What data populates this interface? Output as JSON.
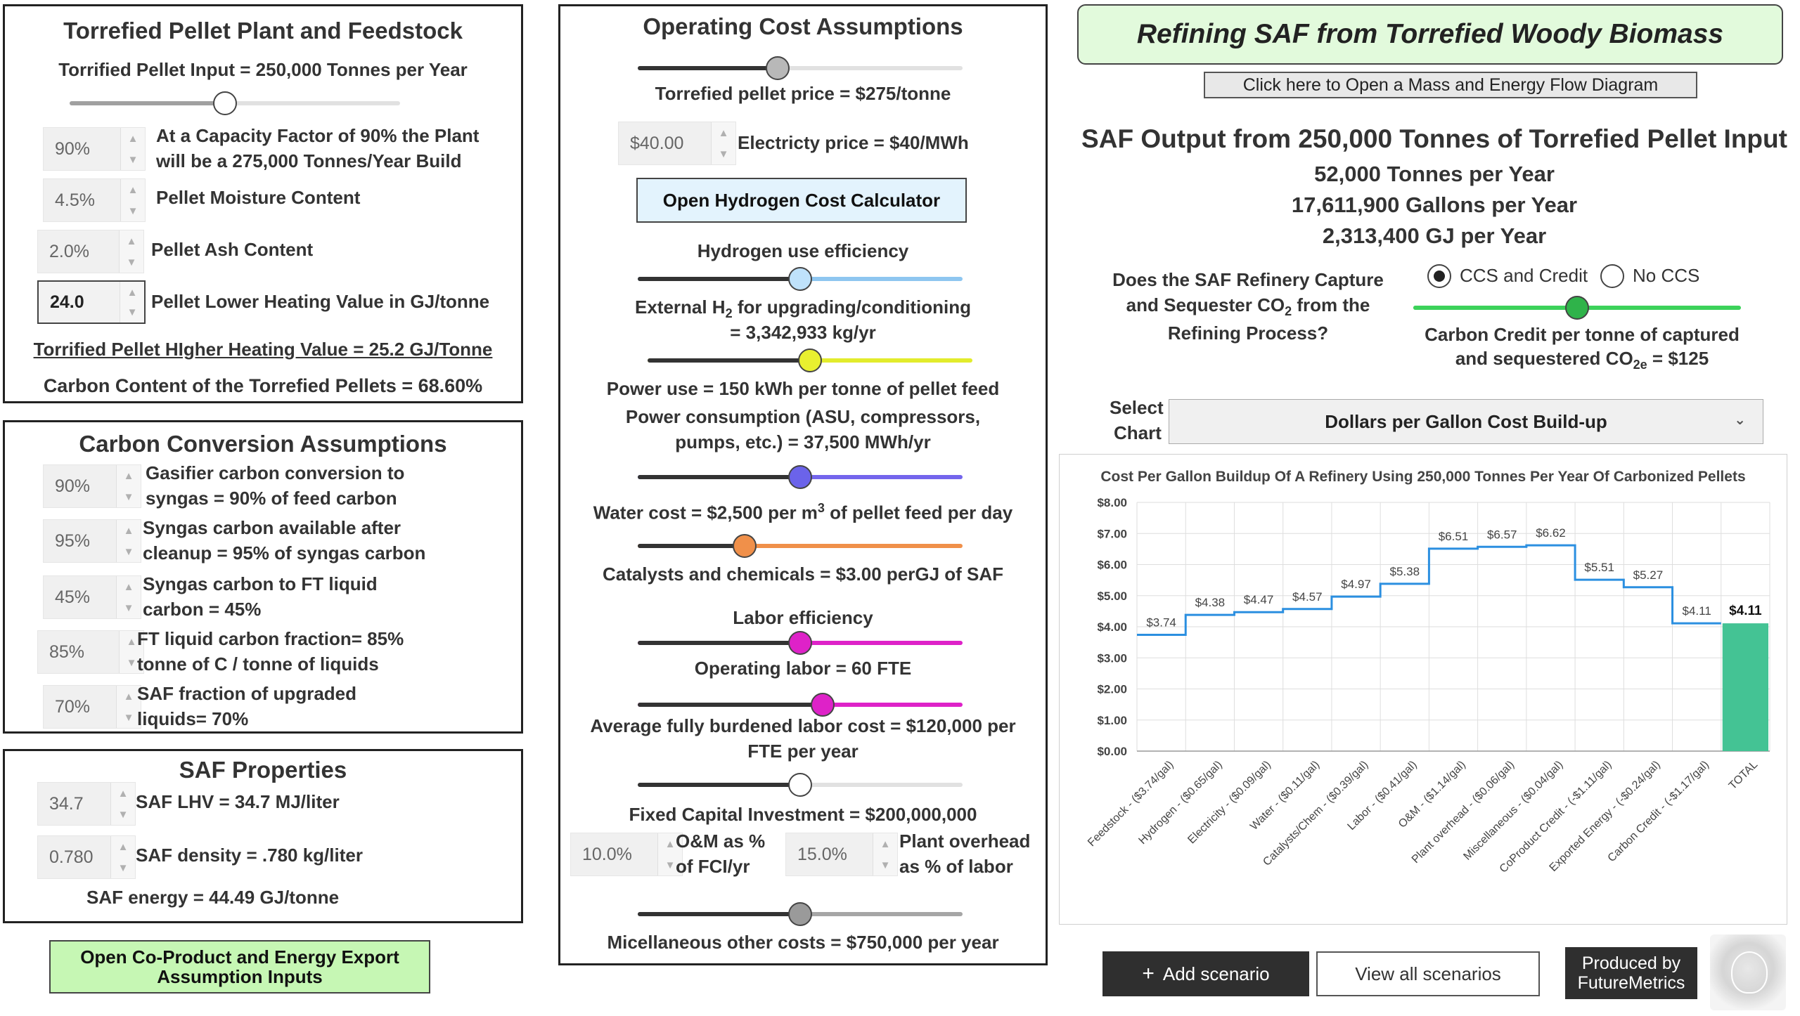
{
  "feedstock": {
    "title": "Torrefied Pellet Plant and Feedstock",
    "input_label": "Torrified Pellet Input = 250,000 Tonnes per Year",
    "input_slider_fraction": 0.47,
    "capacity_value": "90%",
    "capacity_text": "At a Capacity Factor of 90% the Plant will be a 275,000 Tonnes/Year Build",
    "moisture_value": "4.5%",
    "moisture_label": "Pellet Moisture Content",
    "ash_value": "2.0%",
    "ash_label": "Pellet Ash Content",
    "lhv_value": "24.0",
    "lhv_label": "Pellet Lower Heating Value in GJ/tonne",
    "hhv_link": "Torrified Pellet HIgher Heating Value = 25.2 GJ/Tonne",
    "carbon_content": "Carbon Content of the Torrefied Pellets = 68.60%"
  },
  "carbon": {
    "title": "Carbon Conversion Assumptions",
    "items": [
      {
        "value": "90%",
        "line1": "Gasifier carbon conversion to",
        "line2": "syngas = 90% of feed carbon"
      },
      {
        "value": "95%",
        "line1": "Syngas carbon available after",
        "line2": "cleanup = 95% of syngas carbon"
      },
      {
        "value": "45%",
        "line1": "Syngas carbon to FT liquid",
        "line2": "carbon = 45%"
      },
      {
        "value": "85%",
        "line1": "FT liquid carbon fraction= 85%",
        "line2": "tonne of C / tonne of liquids"
      },
      {
        "value": "70%",
        "line1": "SAF fraction of upgraded",
        "line2": "liquids= 70%"
      }
    ]
  },
  "saf": {
    "title": "SAF Properties",
    "lhv_value": "34.7",
    "lhv_label": "SAF LHV = 34.7 MJ/liter",
    "density_value": "0.780",
    "density_label": "SAF density = .780 kg/liter",
    "energy": "SAF energy = 44.49 GJ/tonne"
  },
  "coproduct_button": {
    "line1": "Open Co-Product and Energy Export",
    "line2": "Assumption Inputs"
  },
  "opex": {
    "title": "Operating Cost Assumptions",
    "pellet_price": "Torrefied pellet price = $275/tonne",
    "pellet_price_fraction": 0.43,
    "electricity_value": "$40.00",
    "electricity_label": "Electricty price = $40/MWh",
    "h2_button": "Open Hydrogen Cost Calculator",
    "h2_eff_label": "Hydrogen use efficiency",
    "h2_eff_fraction": 0.5,
    "ext_h2_pre": "External H",
    "ext_h2_sub": "2",
    "ext_h2_post": " for upgrading/conditioning",
    "ext_h2_line2": "= 3,342,933 kg/yr",
    "ext_h2_fraction": 0.5,
    "power_use": "Power use = 150 kWh per tonne of pellet feed",
    "power_cons_1": "Power consumption (ASU, compressors,",
    "power_cons_2": "pumps, etc.) = 37,500 MWh/yr",
    "power_fraction": 0.5,
    "water_pre": "Water cost = $2,500 per m",
    "water_sup": "3",
    "water_post": " of pellet feed per day",
    "water_fraction": 0.33,
    "catalyst": "Catalysts and chemicals = $3.00 perGJ of SAF",
    "labor_eff": "Labor efficiency",
    "labor_eff_fraction": 0.5,
    "op_labor": "Operating labor = 60 FTE",
    "op_labor_fraction": 0.57,
    "labor_cost_1": "Average fully burdened labor cost = $120,000 per",
    "labor_cost_2": "FTE per year",
    "labor_cost_fraction": 0.5,
    "fci": "Fixed Capital Investment = $200,000,000",
    "om_value": "10.0%",
    "om_label_1": "O&M as %",
    "om_label_2": "of FCI/yr",
    "overhead_value": "15.0%",
    "overhead_label_1": "Plant overhead",
    "overhead_label_2": "as % of labor",
    "misc_fraction": 0.5,
    "misc": "Micellaneous other costs = $750,000 per year"
  },
  "header": {
    "title": "Refining SAF from Torrefied Woody Biomass",
    "diagram_button": "Click here to Open a Mass and Energy Flow Diagram"
  },
  "output": {
    "heading": "SAF Output from 250,000 Tonnes of Torrefied Pellet Input",
    "tonnes": "52,000 Tonnes per Year",
    "gallons": "17,611,900 Gallons per Year",
    "gj": "2,313,400 GJ per Year"
  },
  "ccs": {
    "question_1": "Does the SAF Refinery Capture",
    "question_2_pre": "and Sequester CO",
    "question_2_sub": "2",
    "question_2_post": " from the",
    "question_3": "Refining Process?",
    "option_ccs": "CCS and Credit",
    "option_no": "No CCS",
    "credit_fraction": 0.5,
    "credit_line1": "Carbon Credit per tonne of captured",
    "credit_line2_pre": "and sequestered CO",
    "credit_line2_sub": "2e",
    "credit_line2_post": " = $125"
  },
  "select_chart": {
    "label_1": "Select",
    "label_2": "Chart",
    "value": "Dollars per Gallon Cost Build-up"
  },
  "colors": {
    "slider_grey": "#a0a0a0",
    "slider_blue": "#8ec6f0",
    "slider_yellow": "#e2ec2c",
    "slider_purple": "#7466ec",
    "slider_orange": "#f0904a",
    "slider_magenta": "#de22c8",
    "slider_green": "#3cd25a",
    "chart_line": "#2b8fe0",
    "chart_total": "#44c394",
    "title_bg": "#e2fadc",
    "button_green": "#c6f7b4",
    "h2_button_bg": "#e3f3fd"
  },
  "chart_data": {
    "type": "line",
    "title": "Cost Per Gallon Buildup Of A Refinery Using 250,000 Tonnes Per Year Of Carbonized Pellets",
    "categories": [
      "Feedstock - ($3.74/gal)",
      "Hydrogen - ($0.65/gal)",
      "Electricity - ($0.09/gal)",
      "Water - ($0.11/gal)",
      "Catalysts/Chem - ($0.39/gal)",
      "Labor - ($0.41/gal)",
      "O&M - ($1.14/gal)",
      "Plant overhead - ($0.06/gal)",
      "Miscellaneous - ($0.04/gal)",
      "CoProduct Credit - (-$1.11/gal)",
      "Exported Energy - (-$0.24/gal)",
      "Carbon Credit - (-$1.17/gal)",
      "TOTAL"
    ],
    "values": [
      3.74,
      4.38,
      4.47,
      4.57,
      4.97,
      5.38,
      6.51,
      6.57,
      6.62,
      5.51,
      5.27,
      4.11,
      4.11
    ],
    "labels": [
      "$3.74",
      "$4.38",
      "$4.47",
      "$4.57",
      "$4.97",
      "$5.38",
      "$6.51",
      "$6.57",
      "$6.62",
      "$5.51",
      "$5.27",
      "$4.11",
      "$4.11"
    ],
    "total_style": "bar",
    "ylim": [
      0,
      8
    ],
    "yticks": [
      "$0.00",
      "$1.00",
      "$2.00",
      "$3.00",
      "$4.00",
      "$5.00",
      "$6.00",
      "$7.00",
      "$8.00"
    ],
    "grid": true
  },
  "footer": {
    "add_scenario": "Add scenario",
    "add_icon": "plus-icon",
    "view_scenarios": "View all scenarios",
    "produced_1": "Produced by",
    "produced_2": "FutureMetrics"
  }
}
